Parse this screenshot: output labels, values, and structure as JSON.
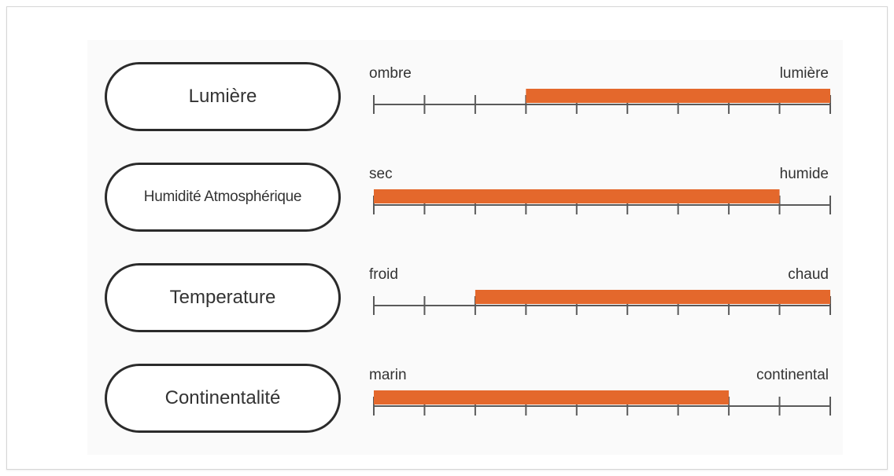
{
  "colors": {
    "bar": "#e4682c",
    "axis": "#5a5a5a",
    "pill_border": "#2b2b2b"
  },
  "chart_data": {
    "type": "bar",
    "ticks": 10,
    "xlim": [
      0,
      9
    ],
    "rows": [
      {
        "label": "Lumière",
        "low_label": "ombre",
        "high_label": "lumière",
        "range": [
          3,
          9
        ]
      },
      {
        "label": "Humidité Atmosphérique",
        "low_label": "sec",
        "high_label": "humide",
        "range": [
          0,
          8
        ]
      },
      {
        "label": "Temperature",
        "low_label": "froid",
        "high_label": "chaud",
        "range": [
          2,
          9
        ]
      },
      {
        "label": "Continentalité",
        "low_label": "marin",
        "high_label": "continental",
        "range": [
          0,
          7
        ]
      }
    ]
  }
}
